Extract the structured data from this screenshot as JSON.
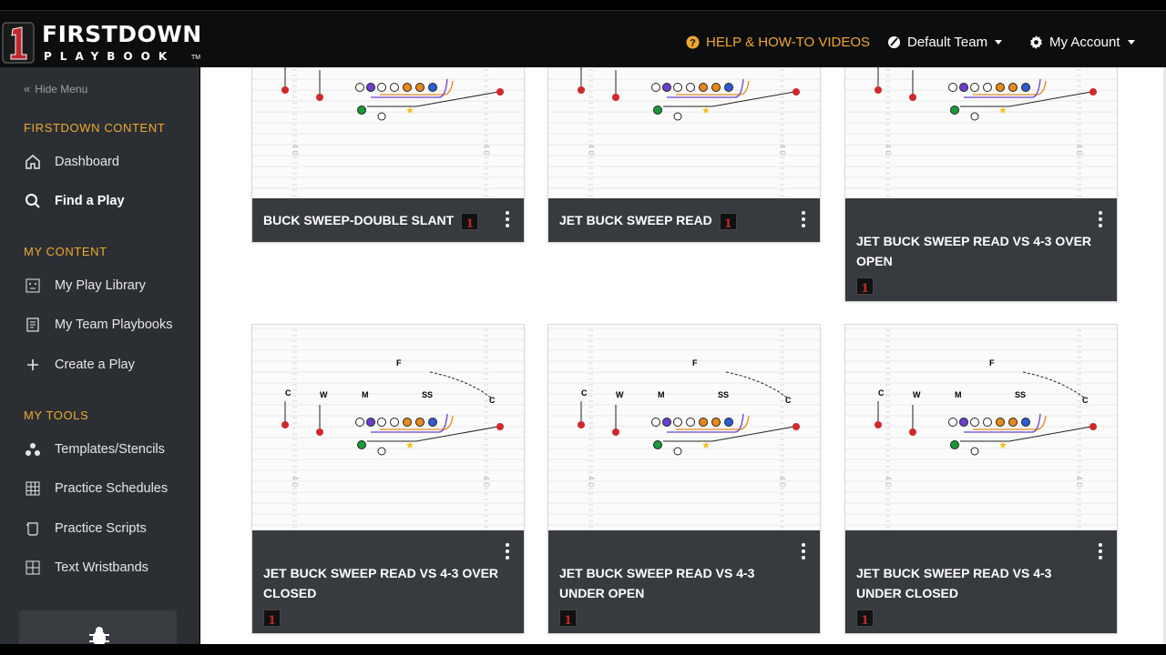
{
  "brand": {
    "title": "FIRSTDOWN",
    "subtitle": "PLAYBOOK",
    "tm": "TM",
    "badge": "1"
  },
  "header": {
    "help": "HELP & HOW-TO VIDEOS",
    "team": "Default Team",
    "account": "My Account"
  },
  "sidebar": {
    "hide_menu": "Hide Menu",
    "section_content": "FIRSTDOWN CONTENT",
    "dashboard": "Dashboard",
    "find_play": "Find a Play",
    "section_my": "MY CONTENT",
    "play_library": "My Play Library",
    "team_playbooks": "My Team Playbooks",
    "create_play": "Create a Play",
    "section_tools": "MY TOOLS",
    "templates": "Templates/Stencils",
    "schedules": "Practice Schedules",
    "scripts": "Practice Scripts",
    "wristbands": "Text Wristbands"
  },
  "cards": [
    {
      "title": "BUCK SWEEP-DOUBLE SLANT"
    },
    {
      "title": "JET BUCK SWEEP READ"
    },
    {
      "title": "JET BUCK SWEEP READ VS 4-3 OVER OPEN"
    },
    {
      "title": "JET BUCK SWEEP READ VS 4-3 OVER CLOSED"
    },
    {
      "title": "JET BUCK SWEEP READ VS 4-3 UNDER OPEN"
    },
    {
      "title": "JET BUCK SWEEP READ VS 4-3 UNDER CLOSED"
    }
  ],
  "colors": {
    "accent": "#f0a830",
    "sidebar": "#2b2f33",
    "card_footer": "#373b40",
    "red": "#d0282d"
  },
  "icons": [
    "help-icon",
    "palette-icon",
    "gear-icon",
    "home-icon",
    "search-icon",
    "library-icon",
    "playbook-icon",
    "plus-icon",
    "templates-icon",
    "grid-icon",
    "script-icon",
    "bug-icon",
    "kebab-icon"
  ]
}
